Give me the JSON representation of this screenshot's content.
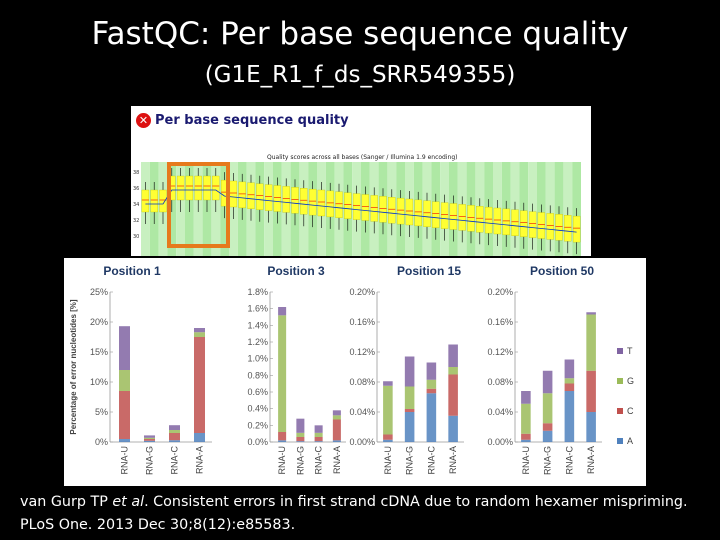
{
  "slide": {
    "title": "FastQC: Per base sequence quality",
    "subtitle": "(G1E_R1_f_ds_SRR549355)",
    "citation_prefix": "van Gurp TP ",
    "citation_italic": "et al",
    "citation_rest": ". Consistent errors in first strand cDNA due to random hexamer mispriming.",
    "citation_line2": "PLoS One. 2013 Dec 30;8(12):e85583."
  },
  "fastqc": {
    "status_icon": "error-x-icon",
    "heading": "Per base sequence quality",
    "caption": "Quality scores across all bases (Sanger / Illumina 1.9 encoding)",
    "y_ticks": [
      "38",
      "36",
      "34",
      "32",
      "30"
    ]
  },
  "colors": {
    "T": "#8064a2",
    "G": "#9bbb59",
    "C": "#c0504d",
    "A": "#4f81bd",
    "fastqc_box": "#ffff33",
    "fastqc_band_a": "#aee8a4",
    "fastqc_band_b": "#c8f0c0",
    "highlight": "#e67a1c"
  },
  "chart_data": [
    {
      "type": "bar",
      "title": "Position 1",
      "ylabel": "Percentage of error nucleotides [%]",
      "categories": [
        "RNA-U",
        "RNA-G",
        "RNA-C",
        "RNA-A"
      ],
      "y_ticks": [
        "0%",
        "5%",
        "10%",
        "15%",
        "20%",
        "25%"
      ],
      "ylim": [
        0,
        25
      ],
      "stacked": true,
      "series": [
        {
          "name": "A",
          "values": [
            0.5,
            0.2,
            0.3,
            1.5
          ]
        },
        {
          "name": "C",
          "values": [
            8.0,
            0.3,
            1.2,
            16.0
          ]
        },
        {
          "name": "G",
          "values": [
            3.5,
            0.2,
            0.5,
            0.8
          ]
        },
        {
          "name": "T",
          "values": [
            7.3,
            0.4,
            0.8,
            0.7
          ]
        }
      ]
    },
    {
      "type": "bar",
      "title": "Position 3",
      "categories": [
        "RNA-U",
        "RNA-G",
        "RNA-C",
        "RNA-A"
      ],
      "y_ticks": [
        "0.0%",
        "0.2%",
        "0.4%",
        "0.6%",
        "0.8%",
        "1.0%",
        "1.2%",
        "1.4%",
        "1.6%",
        "1.8%"
      ],
      "ylim": [
        0,
        1.8
      ],
      "stacked": true,
      "series": [
        {
          "name": "A",
          "values": [
            0.02,
            0.01,
            0.01,
            0.02
          ]
        },
        {
          "name": "C",
          "values": [
            0.1,
            0.05,
            0.05,
            0.25
          ]
        },
        {
          "name": "G",
          "values": [
            1.4,
            0.05,
            0.05,
            0.05
          ]
        },
        {
          "name": "T",
          "values": [
            0.1,
            0.17,
            0.09,
            0.06
          ]
        }
      ]
    },
    {
      "type": "bar",
      "title": "Position 15",
      "categories": [
        "RNA-U",
        "RNA-G",
        "RNA-C",
        "RNA-A"
      ],
      "y_ticks": [
        "0.00%",
        "0.04%",
        "0.08%",
        "0.12%",
        "0.16%",
        "0.20%"
      ],
      "ylim": [
        0,
        0.2
      ],
      "stacked": true,
      "series": [
        {
          "name": "A",
          "values": [
            0.003,
            0.04,
            0.065,
            0.035
          ]
        },
        {
          "name": "C",
          "values": [
            0.007,
            0.004,
            0.006,
            0.055
          ]
        },
        {
          "name": "G",
          "values": [
            0.065,
            0.03,
            0.012,
            0.01
          ]
        },
        {
          "name": "T",
          "values": [
            0.006,
            0.04,
            0.023,
            0.03
          ]
        }
      ]
    },
    {
      "type": "bar",
      "title": "Position 50",
      "categories": [
        "RNA-U",
        "RNA-G",
        "RNA-C",
        "RNA-A"
      ],
      "y_ticks": [
        "0.00%",
        "0.04%",
        "0.08%",
        "0.12%",
        "0.16%",
        "0.20%"
      ],
      "ylim": [
        0,
        0.2
      ],
      "stacked": true,
      "legend": [
        "T",
        "G",
        "C",
        "A"
      ],
      "legend_position": "right",
      "series": [
        {
          "name": "A",
          "values": [
            0.003,
            0.015,
            0.068,
            0.04
          ]
        },
        {
          "name": "C",
          "values": [
            0.008,
            0.01,
            0.01,
            0.055
          ]
        },
        {
          "name": "G",
          "values": [
            0.04,
            0.04,
            0.007,
            0.075
          ]
        },
        {
          "name": "T",
          "values": [
            0.017,
            0.03,
            0.025,
            0.003
          ]
        }
      ]
    }
  ]
}
